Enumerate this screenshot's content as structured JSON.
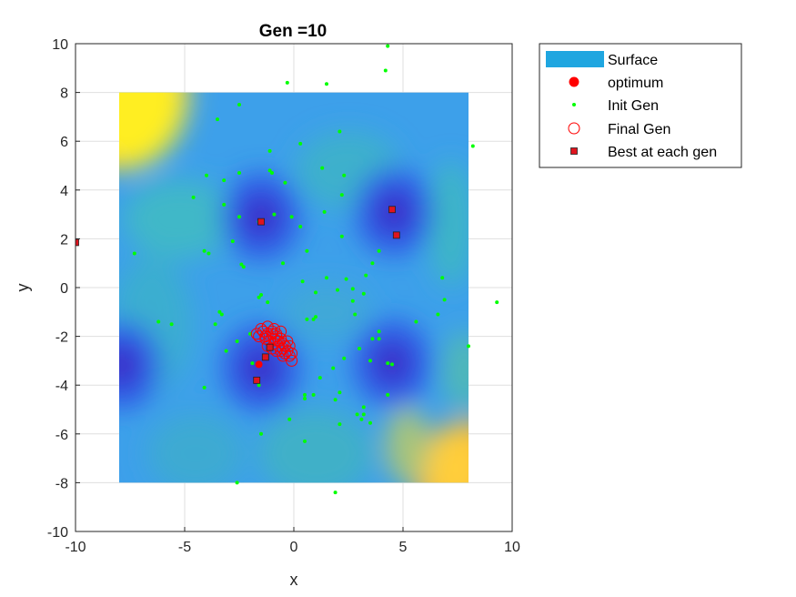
{
  "chart_data": {
    "type": "scatter",
    "title": "Gen =10",
    "xlabel": "x",
    "ylabel": "y",
    "xlim": [
      -10,
      10
    ],
    "ylim": [
      -10,
      10
    ],
    "xticks": [
      -10,
      -5,
      0,
      5,
      10
    ],
    "yticks": [
      -10,
      -8,
      -6,
      -4,
      -2,
      0,
      2,
      4,
      6,
      8,
      10
    ],
    "grid": true,
    "legend_position": "outside-top-right",
    "surface": {
      "name": "Surface",
      "x_range": [
        -8,
        8
      ],
      "y_range": [
        -8,
        8
      ],
      "minima": [
        [
          -1.5,
          2.9
        ],
        [
          4.6,
          3.1
        ],
        [
          -7.9,
          -3.2
        ],
        [
          -1.5,
          -3.3
        ],
        [
          4.5,
          -3.1
        ]
      ]
    },
    "series": [
      {
        "name": "optimum",
        "color": "#ff0000",
        "marker": "filled-circle",
        "points": [
          [
            -1.6,
            -3.15
          ]
        ]
      },
      {
        "name": "Init Gen",
        "color": "#00ff00",
        "marker": "dot",
        "points": [
          [
            4.3,
            9.9
          ],
          [
            4.2,
            8.9
          ],
          [
            -0.3,
            8.4
          ],
          [
            1.5,
            8.35
          ],
          [
            -2.5,
            7.5
          ],
          [
            -3.5,
            6.9
          ],
          [
            2.1,
            6.4
          ],
          [
            8.2,
            5.8
          ],
          [
            0.3,
            5.9
          ],
          [
            -1.1,
            5.6
          ],
          [
            1.3,
            4.9
          ],
          [
            -1.1,
            4.8
          ],
          [
            -1.0,
            4.7
          ],
          [
            -2.5,
            4.7
          ],
          [
            -4.0,
            4.6
          ],
          [
            2.3,
            4.6
          ],
          [
            -3.2,
            4.4
          ],
          [
            -0.4,
            4.3
          ],
          [
            -4.6,
            3.7
          ],
          [
            2.2,
            3.8
          ],
          [
            -3.2,
            3.4
          ],
          [
            1.4,
            3.1
          ],
          [
            -0.9,
            3.0
          ],
          [
            -2.5,
            2.9
          ],
          [
            -0.1,
            2.9
          ],
          [
            -1.6,
            2.7
          ],
          [
            0.3,
            2.5
          ],
          [
            2.2,
            2.1
          ],
          [
            -2.8,
            1.9
          ],
          [
            -4.1,
            1.5
          ],
          [
            0.6,
            1.5
          ],
          [
            3.9,
            1.5
          ],
          [
            -3.9,
            1.4
          ],
          [
            -7.3,
            1.4
          ],
          [
            3.6,
            1.0
          ],
          [
            -0.5,
            1.0
          ],
          [
            -2.4,
            0.95
          ],
          [
            -2.3,
            0.85
          ],
          [
            3.3,
            0.5
          ],
          [
            1.5,
            0.4
          ],
          [
            2.4,
            0.35
          ],
          [
            6.8,
            0.4
          ],
          [
            0.4,
            0.25
          ],
          [
            2.0,
            -0.1
          ],
          [
            -1.5,
            -0.3
          ],
          [
            2.7,
            -0.05
          ],
          [
            1.0,
            -0.2
          ],
          [
            3.2,
            -0.25
          ],
          [
            -1.6,
            -0.4
          ],
          [
            6.9,
            -0.5
          ],
          [
            -1.2,
            -0.6
          ],
          [
            2.7,
            -0.55
          ],
          [
            9.3,
            -0.6
          ],
          [
            -3.4,
            -1.0
          ],
          [
            6.6,
            -1.1
          ],
          [
            -3.3,
            -1.1
          ],
          [
            2.8,
            -1.1
          ],
          [
            0.6,
            -1.3
          ],
          [
            1.0,
            -1.2
          ],
          [
            0.9,
            -1.3
          ],
          [
            5.6,
            -1.4
          ],
          [
            -3.6,
            -1.5
          ],
          [
            -6.2,
            -1.4
          ],
          [
            -5.6,
            -1.5
          ],
          [
            -2.0,
            -1.9
          ],
          [
            3.9,
            -1.8
          ],
          [
            3.6,
            -2.1
          ],
          [
            3.9,
            -2.1
          ],
          [
            -2.6,
            -2.2
          ],
          [
            8.0,
            -2.4
          ],
          [
            3.0,
            -2.5
          ],
          [
            -3.1,
            -2.6
          ],
          [
            2.3,
            -2.9
          ],
          [
            3.5,
            -3.0
          ],
          [
            -1.9,
            -3.1
          ],
          [
            4.3,
            -3.1
          ],
          [
            4.5,
            -3.15
          ],
          [
            1.8,
            -3.3
          ],
          [
            1.2,
            -3.7
          ],
          [
            -1.6,
            -4.0
          ],
          [
            -4.1,
            -4.1
          ],
          [
            2.1,
            -4.3
          ],
          [
            4.3,
            -4.4
          ],
          [
            0.9,
            -4.4
          ],
          [
            0.5,
            -4.4
          ],
          [
            0.5,
            -4.55
          ],
          [
            1.9,
            -4.6
          ],
          [
            3.2,
            -4.9
          ],
          [
            2.9,
            -5.2
          ],
          [
            3.2,
            -5.2
          ],
          [
            3.1,
            -5.4
          ],
          [
            3.5,
            -5.55
          ],
          [
            -0.2,
            -5.4
          ],
          [
            2.1,
            -5.6
          ],
          [
            -1.5,
            -6.0
          ],
          [
            0.5,
            -6.3
          ],
          [
            -2.6,
            -8.0
          ],
          [
            1.9,
            -8.4
          ],
          [
            -10,
            1.85
          ]
        ]
      },
      {
        "name": "Final Gen",
        "color": "#ff0000",
        "marker": "open-circle",
        "points": [
          [
            -1.3,
            -2.0
          ],
          [
            -1.0,
            -1.9
          ],
          [
            -0.8,
            -2.0
          ],
          [
            -0.6,
            -2.1
          ],
          [
            -1.4,
            -1.8
          ],
          [
            -1.2,
            -1.9
          ],
          [
            -0.9,
            -2.1
          ],
          [
            -0.7,
            -2.2
          ],
          [
            -0.5,
            -2.3
          ],
          [
            -0.4,
            -2.4
          ],
          [
            -1.1,
            -2.2
          ],
          [
            -0.9,
            -2.3
          ],
          [
            -0.7,
            -2.4
          ],
          [
            -0.5,
            -2.5
          ],
          [
            -0.3,
            -2.6
          ],
          [
            -1.3,
            -2.1
          ],
          [
            -1.6,
            -2.0
          ],
          [
            -1.5,
            -1.7
          ],
          [
            -1.2,
            -1.6
          ],
          [
            -0.9,
            -1.7
          ],
          [
            -0.6,
            -2.6
          ],
          [
            -0.4,
            -2.7
          ],
          [
            -0.2,
            -2.8
          ],
          [
            -0.1,
            -2.7
          ],
          [
            -0.6,
            -1.8
          ],
          [
            -0.3,
            -2.2
          ],
          [
            -0.2,
            -2.4
          ],
          [
            -1.2,
            -2.4
          ],
          [
            -1.0,
            -2.5
          ],
          [
            -0.8,
            -2.6
          ],
          [
            -0.5,
            -2.8
          ],
          [
            -0.1,
            -3.0
          ],
          [
            -1.7,
            -1.9
          ],
          [
            -1.0,
            -1.8
          ],
          [
            -0.8,
            -1.9
          ]
        ]
      },
      {
        "name": "Best at each gen",
        "color": "#e0141e",
        "marker": "square",
        "points": [
          [
            -1.5,
            2.7
          ],
          [
            4.5,
            3.2
          ],
          [
            4.7,
            2.15
          ],
          [
            -1.1,
            -2.45
          ],
          [
            -1.3,
            -2.85
          ],
          [
            -1.7,
            -3.8
          ],
          [
            -10,
            1.85
          ]
        ]
      }
    ]
  }
}
